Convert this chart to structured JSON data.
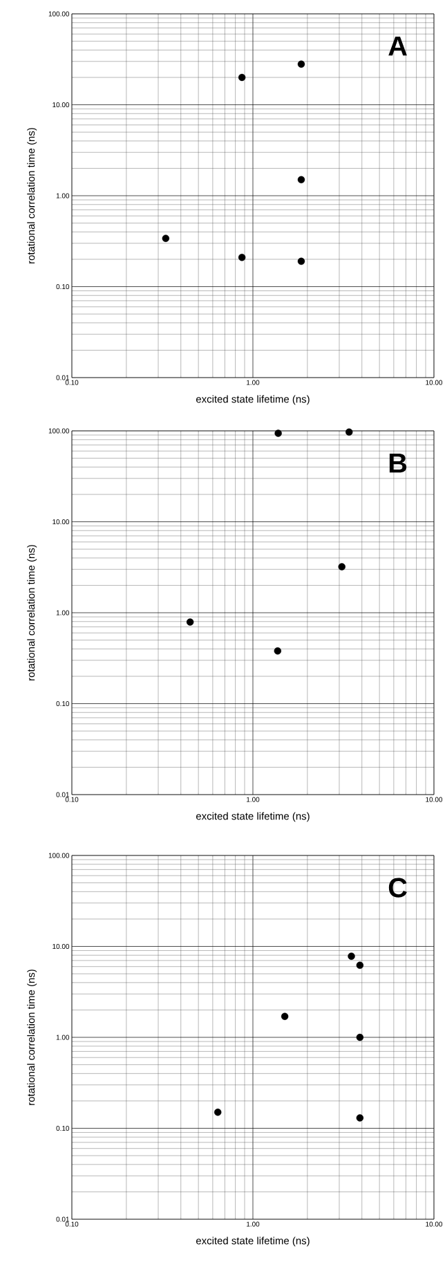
{
  "chart_data": [
    {
      "type": "scatter",
      "title": "A",
      "xlabel": "excited  state  lifetime     (ns)",
      "ylabel": "rotational  correlation  time     (ns)",
      "log": "xy",
      "grid": true,
      "marker": "circle",
      "color": "#000000",
      "x": [
        0.33,
        0.87,
        1.85,
        1.85,
        1.85,
        0.87
      ],
      "values": [
        0.34,
        0.21,
        0.19,
        1.5,
        28,
        20
      ],
      "xlim": [
        0.1,
        10
      ],
      "ylim": [
        0.01,
        100
      ],
      "xticks": [
        {
          "value": 0.1,
          "label": "0.10"
        },
        {
          "value": 1,
          "label": "1.00"
        },
        {
          "value": 10,
          "label": "10.00"
        }
      ],
      "yticks": [
        {
          "value": 0.01,
          "label": "0.01"
        },
        {
          "value": 0.1,
          "label": "0.10"
        },
        {
          "value": 1,
          "label": "1.00"
        },
        {
          "value": 10,
          "label": "10.00"
        },
        {
          "value": 100,
          "label": "100.00"
        }
      ]
    },
    {
      "type": "scatter",
      "title": "B",
      "xlabel": "excited  state  lifetime     (ns)",
      "ylabel": "rotational  correlation  time     (ns)",
      "log": "xy",
      "grid": true,
      "marker": "circle",
      "color": "#000000",
      "x": [
        0.45,
        1.37,
        3.1,
        1.38,
        3.4
      ],
      "values": [
        0.79,
        0.38,
        3.2,
        94,
        97
      ],
      "xlim": [
        0.1,
        10
      ],
      "ylim": [
        0.01,
        100
      ],
      "xticks": [
        {
          "value": 0.1,
          "label": "0.10"
        },
        {
          "value": 1,
          "label": "1.00"
        },
        {
          "value": 10,
          "label": "10.00"
        }
      ],
      "yticks": [
        {
          "value": 0.01,
          "label": "0.01"
        },
        {
          "value": 0.1,
          "label": "0.10"
        },
        {
          "value": 1,
          "label": "1.00"
        },
        {
          "value": 10,
          "label": "10.00"
        },
        {
          "value": 100,
          "label": "100.00"
        }
      ]
    },
    {
      "type": "scatter",
      "title": "C",
      "xlabel": "excited  state  lifetime     (ns)",
      "ylabel": "rotational  correlation  time     (ns)",
      "log": "xy",
      "grid": true,
      "marker": "circle",
      "color": "#000000",
      "x": [
        0.64,
        1.5,
        3.9,
        3.9,
        3.9,
        3.5
      ],
      "values": [
        0.15,
        1.7,
        0.13,
        1.0,
        6.2,
        7.8
      ],
      "xlim": [
        0.1,
        10
      ],
      "ylim": [
        0.01,
        100
      ],
      "xticks": [
        {
          "value": 0.1,
          "label": "0.10"
        },
        {
          "value": 1,
          "label": "1.00"
        },
        {
          "value": 10,
          "label": "10.00"
        }
      ],
      "yticks": [
        {
          "value": 0.01,
          "label": "0.01"
        },
        {
          "value": 0.1,
          "label": "0.10"
        },
        {
          "value": 1,
          "label": "1.00"
        },
        {
          "value": 10,
          "label": "10.00"
        },
        {
          "value": 100,
          "label": "100.00"
        }
      ]
    }
  ]
}
